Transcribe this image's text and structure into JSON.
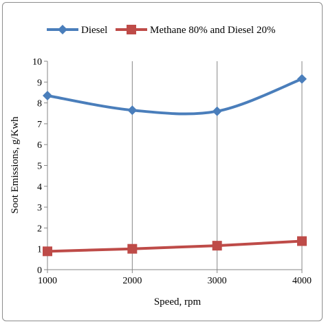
{
  "chart_data": {
    "type": "line",
    "x": [
      1000,
      2000,
      3000,
      4000
    ],
    "xlabel": "Speed, rpm",
    "ylabel": "Soot Emissions, g/Kwh",
    "xlim": [
      1000,
      4000
    ],
    "ylim": [
      0,
      10
    ],
    "x_ticks": [
      "1000",
      "2000",
      "3000",
      "4000"
    ],
    "y_ticks": [
      "0",
      "1",
      "2",
      "3",
      "4",
      "5",
      "6",
      "7",
      "8",
      "9",
      "10"
    ],
    "grid": "vertical",
    "legend_position": "top",
    "series": [
      {
        "name": "Diesel",
        "values": [
          8.35,
          7.65,
          7.6,
          9.15
        ],
        "color": "#4a7ebb",
        "marker": "diamond",
        "smooth": true
      },
      {
        "name": "Methane 80% and Diesel 20%",
        "values": [
          0.88,
          1.0,
          1.15,
          1.37
        ],
        "color": "#be4b48",
        "marker": "square",
        "smooth": false
      }
    ]
  }
}
